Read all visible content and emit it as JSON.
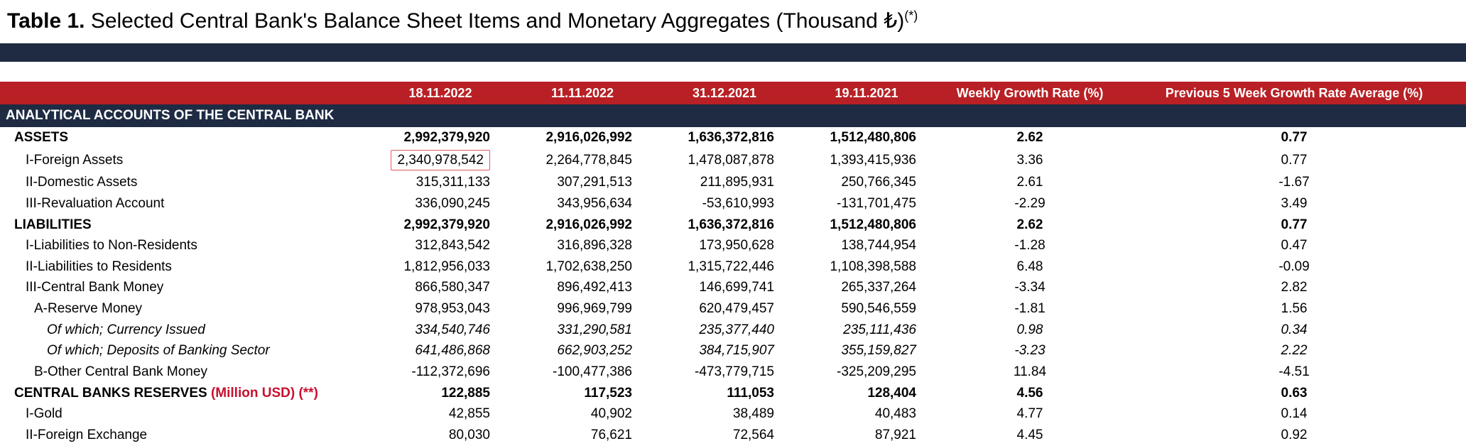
{
  "title": {
    "prefix": "Table 1.",
    "rest": " Selected Central Bank's Balance Sheet Items and Monetary Aggregates (Thousand ₺)",
    "sup": "(*)"
  },
  "colors": {
    "navy": "#1e2b43",
    "red_header": "#b82025",
    "red_text": "#c8102e",
    "highlight_border": "#e05a5a"
  },
  "columns": {
    "date1": "18.11.2022",
    "date2": "11.11.2022",
    "date3": "31.12.2021",
    "date4": "19.11.2021",
    "weekly": "Weekly Growth Rate (%)",
    "prev5": "Previous 5 Week Growth Rate Average (%)"
  },
  "section_title": "ANALYTICAL ACCOUNTS OF THE CENTRAL BANK",
  "rows": [
    {
      "label": "ASSETS",
      "cls": "bold ind1",
      "d": [
        "2,992,379,920",
        "2,916,026,992",
        "1,636,372,816",
        "1,512,480,806"
      ],
      "w": "2.62",
      "p": "0.77",
      "boldrow": true
    },
    {
      "label": "I-Foreign Assets",
      "cls": "ind2",
      "d": [
        "2,340,978,542",
        "2,264,778,845",
        "1,478,087,878",
        "1,393,415,936"
      ],
      "w": "3.36",
      "p": "0.77",
      "highlight_d0": true
    },
    {
      "label": "II-Domestic Assets",
      "cls": "ind2",
      "d": [
        "315,311,133",
        "307,291,513",
        "211,895,931",
        "250,766,345"
      ],
      "w": "2.61",
      "p": "-1.67"
    },
    {
      "label": "III-Revaluation Account",
      "cls": "ind2",
      "d": [
        "336,090,245",
        "343,956,634",
        "-53,610,993",
        "-131,701,475"
      ],
      "w": "-2.29",
      "p": "3.49"
    },
    {
      "label": "LIABILITIES",
      "cls": "bold ind1",
      "d": [
        "2,992,379,920",
        "2,916,026,992",
        "1,636,372,816",
        "1,512,480,806"
      ],
      "w": "2.62",
      "p": "0.77",
      "boldrow": true
    },
    {
      "label": "I-Liabilities to Non-Residents",
      "cls": "ind2",
      "d": [
        "312,843,542",
        "316,896,328",
        "173,950,628",
        "138,744,954"
      ],
      "w": "-1.28",
      "p": "0.47"
    },
    {
      "label": "II-Liabilities to Residents",
      "cls": "ind2",
      "d": [
        "1,812,956,033",
        "1,702,638,250",
        "1,315,722,446",
        "1,108,398,588"
      ],
      "w": "6.48",
      "p": "-0.09"
    },
    {
      "label": "III-Central Bank Money",
      "cls": "ind2",
      "d": [
        "866,580,347",
        "896,492,413",
        "146,699,741",
        "265,337,264"
      ],
      "w": "-3.34",
      "p": "2.82"
    },
    {
      "label": "A-Reserve Money",
      "cls": "ind3",
      "d": [
        "978,953,043",
        "996,969,799",
        "620,479,457",
        "590,546,559"
      ],
      "w": "-1.81",
      "p": "1.56"
    },
    {
      "label": "Of which; Currency Issued",
      "cls": "ind4 italic",
      "d": [
        "334,540,746",
        "331,290,581",
        "235,377,440",
        "235,111,436"
      ],
      "w": "0.98",
      "p": "0.34",
      "italicrow": true
    },
    {
      "label": "Of which; Deposits of Banking Sector",
      "cls": "ind4 italic",
      "d": [
        "641,486,868",
        "662,903,252",
        "384,715,907",
        "355,159,827"
      ],
      "w": "-3.23",
      "p": "2.22",
      "italicrow": true
    },
    {
      "label": "B-Other Central Bank Money",
      "cls": "ind3",
      "d": [
        "-112,372,696",
        "-100,477,386",
        "-473,779,715",
        "-325,209,295"
      ],
      "w": "11.84",
      "p": "-4.51"
    },
    {
      "label": "CENTRAL BANKS RESERVES ",
      "suffix": "(Million USD) (**)",
      "cls": "bold ind1",
      "d": [
        "122,885",
        "117,523",
        "111,053",
        "128,404"
      ],
      "w": "4.56",
      "p": "0.63",
      "boldrow": true,
      "suffix_red": true
    },
    {
      "label": "I-Gold",
      "cls": "ind2",
      "d": [
        "42,855",
        "40,902",
        "38,489",
        "40,483"
      ],
      "w": "4.77",
      "p": "0.14"
    },
    {
      "label": "II-Foreign Exchange",
      "cls": "ind2",
      "d": [
        "80,030",
        "76,621",
        "72,564",
        "87,921"
      ],
      "w": "4.45",
      "p": "0.92"
    }
  ]
}
